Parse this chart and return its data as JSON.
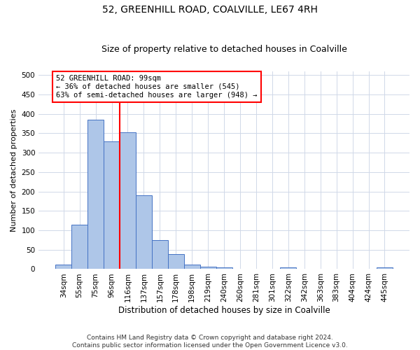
{
  "title_line1": "52, GREENHILL ROAD, COALVILLE, LE67 4RH",
  "title_line2": "Size of property relative to detached houses in Coalville",
  "xlabel": "Distribution of detached houses by size in Coalville",
  "ylabel": "Number of detached properties",
  "footnote": "Contains HM Land Registry data © Crown copyright and database right 2024.\nContains public sector information licensed under the Open Government Licence v3.0.",
  "bin_labels": [
    "34sqm",
    "55sqm",
    "75sqm",
    "96sqm",
    "116sqm",
    "137sqm",
    "157sqm",
    "178sqm",
    "198sqm",
    "219sqm",
    "240sqm",
    "260sqm",
    "281sqm",
    "301sqm",
    "322sqm",
    "342sqm",
    "363sqm",
    "383sqm",
    "404sqm",
    "424sqm",
    "445sqm"
  ],
  "bar_heights": [
    11,
    115,
    385,
    330,
    352,
    190,
    75,
    38,
    11,
    7,
    5,
    0,
    0,
    0,
    5,
    0,
    0,
    0,
    0,
    0,
    5
  ],
  "bar_color": "#aec6e8",
  "bar_edge_color": "#4472c4",
  "vline_x": 3.5,
  "vline_color": "red",
  "ylim": [
    0,
    510
  ],
  "yticks": [
    0,
    50,
    100,
    150,
    200,
    250,
    300,
    350,
    400,
    450,
    500
  ],
  "annotation_text": "52 GREENHILL ROAD: 99sqm\n← 36% of detached houses are smaller (545)\n63% of semi-detached houses are larger (948) →",
  "annotation_box_color": "white",
  "annotation_border_color": "red",
  "grid_color": "#d0d8e8",
  "title1_fontsize": 10,
  "title2_fontsize": 9,
  "annot_fontsize": 7.5,
  "xlabel_fontsize": 8.5,
  "ylabel_fontsize": 8,
  "tick_fontsize": 7.5,
  "footnote_fontsize": 6.5
}
